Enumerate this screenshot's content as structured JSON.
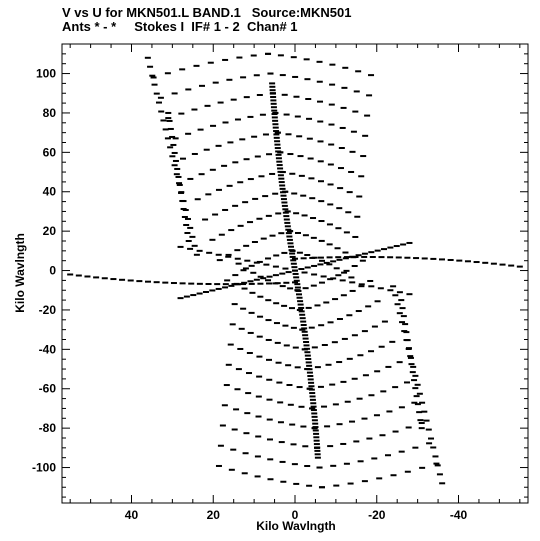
{
  "header": {
    "line1": "V vs U for MKN501.L BAND.1   Source:MKN501",
    "line2": "Ants * - *     Stokes I  IF# 1 - 2  Chan# 1"
  },
  "chart_data": {
    "type": "scatter",
    "title": "V vs U for MKN501.L BAND.1   Source:MKN501",
    "subtitle": "Ants * - *     Stokes I  IF# 1 - 2  Chan# 1",
    "xlabel": "Kilo Wavlngth",
    "ylabel": "Kilo Wavlngth",
    "xlim": [
      57,
      -57
    ],
    "ylim": [
      -118,
      115
    ],
    "x_ticks": [
      40,
      20,
      0,
      -20,
      -40
    ],
    "y_ticks": [
      100,
      80,
      60,
      40,
      20,
      0,
      -20,
      -40,
      -60,
      -80,
      -100
    ],
    "grid": false,
    "marker_color": "#000000",
    "tracks": [
      {
        "u": 36,
        "v": 108,
        "du": 7,
        "dv": -106
      },
      {
        "u": 30,
        "v": 78,
        "du": 8,
        "dv": -66
      },
      {
        "u": 26,
        "v": 12,
        "du": 5,
        "dv": -5
      },
      {
        "u": 54,
        "v": -5,
        "du": 30,
        "dv": 12
      },
      {
        "u": 24,
        "v": -15,
        "du": 24,
        "dv": 15
      },
      {
        "u": 10,
        "v": -8,
        "du": 8,
        "dv": 6
      },
      {
        "u": 28,
        "v": 103,
        "du": 20,
        "dv": -10
      },
      {
        "u": 21,
        "v": 84,
        "du": 14,
        "dv": -8
      },
      {
        "u": 19,
        "v": 74,
        "du": 12,
        "dv": -9
      },
      {
        "u": 18,
        "v": 62,
        "du": 11,
        "dv": -11
      },
      {
        "u": 17,
        "v": 50,
        "du": 11,
        "dv": -12
      },
      {
        "u": 16,
        "v": 40,
        "du": 10,
        "dv": -13
      },
      {
        "u": 15,
        "v": 28,
        "du": 10,
        "dv": -14
      },
      {
        "u": 14,
        "v": 18,
        "du": 9,
        "dv": -15
      },
      {
        "u": 28,
        "v": -40,
        "du": 0,
        "dv": 0
      }
    ]
  }
}
